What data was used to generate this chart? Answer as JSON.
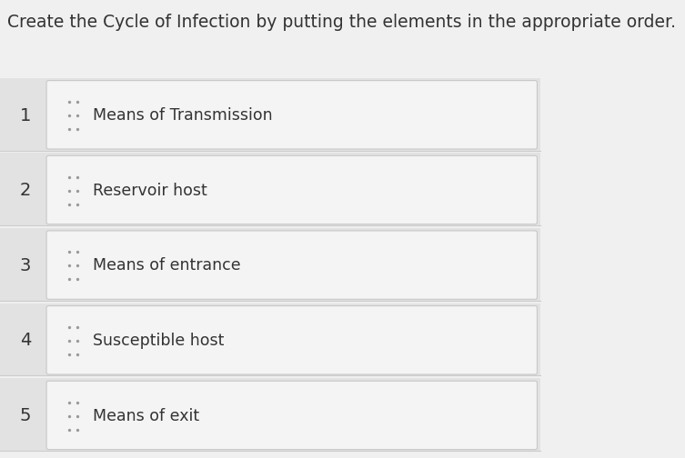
{
  "title": "Create the Cycle of Infection by putting the elements in the appropriate order.",
  "title_fontsize": 13.5,
  "background_color": "#f0f0f0",
  "items": [
    {
      "number": "1",
      "text": "Means of Transmission"
    },
    {
      "number": "2",
      "text": "Reservoir host"
    },
    {
      "number": "3",
      "text": "Means of entrance"
    },
    {
      "number": "4",
      "text": "Susceptible host"
    },
    {
      "number": "5",
      "text": "Means of exit"
    }
  ],
  "row_bg_color": "#e2e2e2",
  "box_bg_color": "#f4f4f4",
  "box_border_color": "#c8c8c8",
  "number_color": "#333333",
  "text_color": "#333333",
  "dot_color": "#999999",
  "separator_color": "#cccccc",
  "fig_width": 7.53,
  "fig_height": 5.04,
  "dpi": 100
}
